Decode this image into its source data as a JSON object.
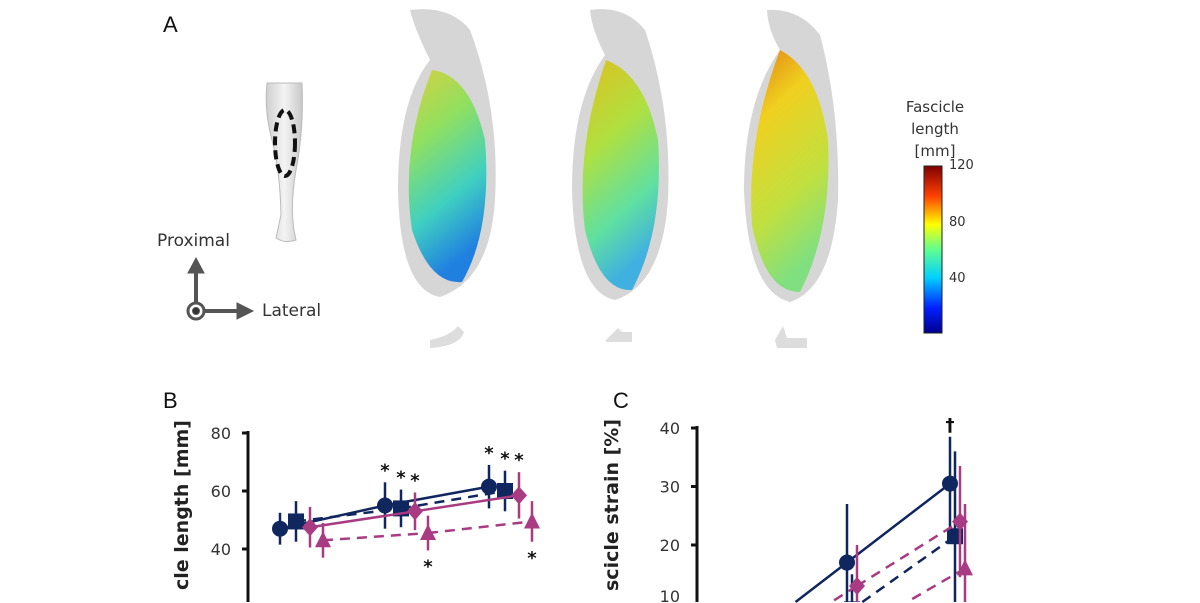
{
  "panel_a": {
    "label": "A",
    "orientation": {
      "proximal": "Proximal",
      "lateral": "Lateral"
    },
    "colorbar": {
      "title_line1": "Fascicle length",
      "title_line2": "[mm]",
      "ticks": [
        "120",
        "80",
        "40"
      ],
      "range": [
        0,
        120
      ],
      "colormap": "jet"
    }
  },
  "chart_data": [
    {
      "panel": "B",
      "type": "line",
      "ylabel": "cle length [mm]",
      "ylim": [
        30,
        80
      ],
      "yticks": [
        "80",
        "60",
        "40"
      ],
      "grid": false,
      "series": [
        {
          "marker": "circle",
          "line": "solid",
          "color": "#10265e",
          "x": [
            0,
            1,
            2
          ],
          "y": [
            47,
            55,
            61.5
          ],
          "err": [
            5.5,
            8,
            7.5
          ]
        },
        {
          "marker": "square",
          "line": "dashed",
          "color": "#10265e",
          "x": [
            0,
            1,
            2
          ],
          "y": [
            49.5,
            54,
            60
          ],
          "err": [
            7,
            6.5,
            7
          ]
        },
        {
          "marker": "diamond",
          "line": "solid",
          "color": "#a83b82",
          "x": [
            0,
            1,
            2
          ],
          "y": [
            47.5,
            53,
            58.5
          ],
          "err": [
            7,
            6.5,
            8
          ]
        },
        {
          "marker": "triangle",
          "line": "dashed",
          "color": "#a83b82",
          "x": [
            0,
            1,
            2
          ],
          "y": [
            43,
            45.5,
            49.5
          ],
          "err": [
            6,
            6,
            7
          ]
        }
      ],
      "annotations": [
        {
          "text": "*",
          "x": 1,
          "series": 0,
          "pos": "above"
        },
        {
          "text": "*",
          "x": 1,
          "series": 1,
          "pos": "above"
        },
        {
          "text": "*",
          "x": 1,
          "series": 2,
          "pos": "above"
        },
        {
          "text": "*",
          "x": 1,
          "series": 3,
          "pos": "below"
        },
        {
          "text": "*",
          "x": 2,
          "series": 0,
          "pos": "above"
        },
        {
          "text": "*",
          "x": 2,
          "series": 1,
          "pos": "above"
        },
        {
          "text": "*",
          "x": 2,
          "series": 2,
          "pos": "above"
        },
        {
          "text": "*",
          "x": 2,
          "series": 3,
          "pos": "below"
        }
      ]
    },
    {
      "panel": "C",
      "type": "line",
      "ylabel": "scicle strain [%]",
      "ylim": [
        10,
        40
      ],
      "yticks": [
        "40",
        "30",
        "20",
        "10"
      ],
      "grid": false,
      "series": [
        {
          "marker": "circle",
          "line": "solid",
          "color": "#10265e",
          "x": [
            1,
            2
          ],
          "y": [
            17,
            30.5
          ],
          "err": [
            10,
            8
          ]
        },
        {
          "marker": "square",
          "line": "dashed",
          "color": "#10265e",
          "x": [
            1,
            2
          ],
          "y": [
            9,
            21.5
          ],
          "err": [
            6,
            14.5
          ]
        },
        {
          "marker": "diamond",
          "line": "dashed",
          "color": "#a83b82",
          "x": [
            1,
            2
          ],
          "y": [
            13,
            24
          ],
          "err": [
            7,
            9.5
          ]
        },
        {
          "marker": "triangle",
          "line": "dashed",
          "color": "#a83b82",
          "x": [
            2
          ],
          "y": [
            16
          ],
          "err": [
            11
          ]
        }
      ],
      "annotations": [
        {
          "text": "†",
          "x": 2,
          "series": 0,
          "pos": "above"
        }
      ]
    }
  ]
}
